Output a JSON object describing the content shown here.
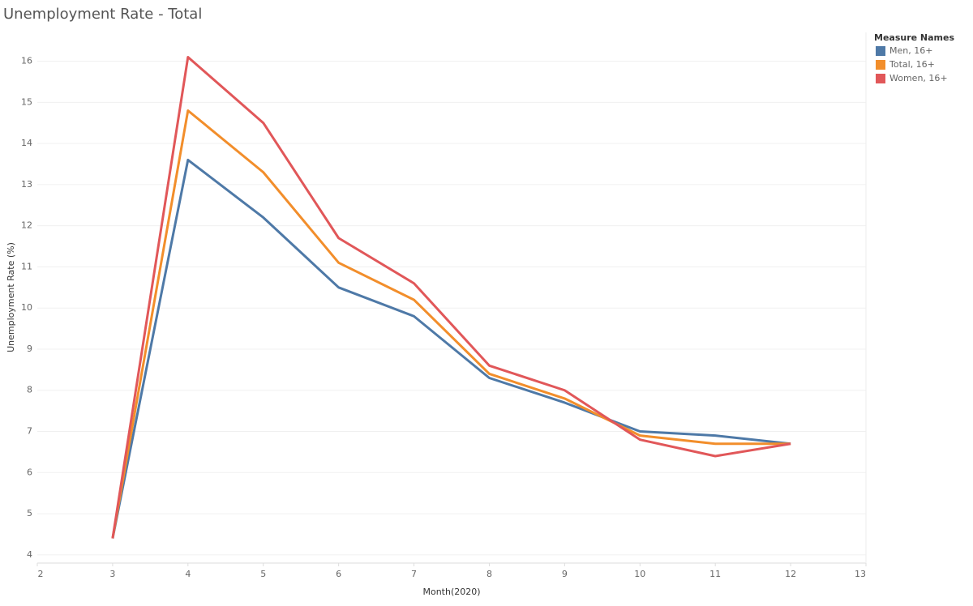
{
  "chart_data": {
    "type": "line",
    "title": "Unemployment Rate - Total",
    "x_label": "Month(2020)",
    "y_label": "Unemployment Rate (%)",
    "x": [
      3,
      4,
      5,
      6,
      7,
      8,
      9,
      10,
      11,
      12
    ],
    "series": [
      {
        "name": "Men, 16+",
        "color": "#4e79a7",
        "values": [
          4.4,
          13.6,
          12.2,
          10.5,
          9.8,
          8.3,
          7.7,
          7.0,
          6.9,
          6.7
        ]
      },
      {
        "name": "Total, 16+",
        "color": "#f28e2b",
        "values": [
          4.4,
          14.8,
          13.3,
          11.1,
          10.2,
          8.4,
          7.8,
          6.9,
          6.7,
          6.7
        ]
      },
      {
        "name": "Women, 16+",
        "color": "#e15759",
        "values": [
          4.4,
          16.1,
          14.5,
          11.7,
          10.6,
          8.6,
          8.0,
          6.8,
          6.4,
          6.7
        ]
      }
    ],
    "legend_title": "Measure Names",
    "xlim": [
      2,
      13
    ],
    "xticks": [
      2,
      3,
      4,
      5,
      6,
      7,
      8,
      9,
      10,
      11,
      12,
      13
    ],
    "ylim": [
      3.8,
      16.7
    ],
    "yticks": [
      4,
      5,
      6,
      7,
      8,
      9,
      10,
      11,
      12,
      13,
      14,
      15,
      16
    ],
    "grid": true,
    "legend_position": "top-right"
  }
}
